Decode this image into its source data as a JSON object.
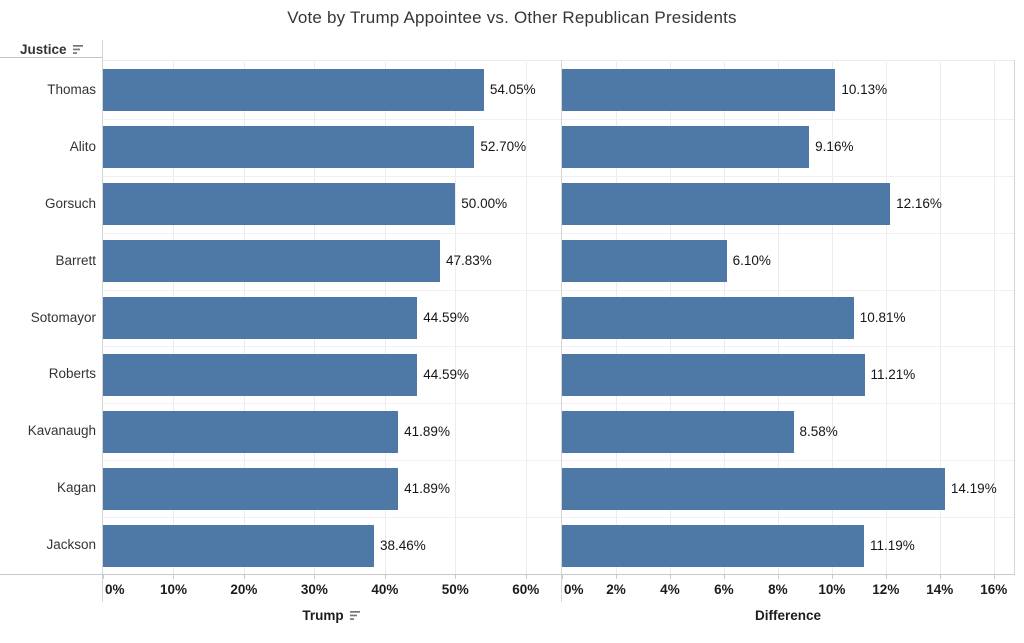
{
  "chart_data": {
    "type": "bar",
    "orientation": "horizontal",
    "title": "Vote by Trump Appointee vs. Other Republican Presidents",
    "row_header": {
      "label": "Justice",
      "sorted": true
    },
    "categories": [
      "Thomas",
      "Alito",
      "Gorsuch",
      "Barrett",
      "Sotomayor",
      "Roberts",
      "Kavanaugh",
      "Kagan",
      "Jackson"
    ],
    "series": [
      {
        "name": "Trump",
        "values": [
          54.05,
          52.7,
          50.0,
          47.83,
          44.59,
          44.59,
          41.89,
          41.89,
          38.46
        ],
        "value_labels": [
          "54.05%",
          "52.70%",
          "50.00%",
          "47.83%",
          "44.59%",
          "44.59%",
          "41.89%",
          "41.89%",
          "38.46%"
        ],
        "axis": {
          "title": "Trump",
          "sorted": true,
          "ticks": [
            "0%",
            "10%",
            "20%",
            "30%",
            "40%",
            "50%",
            "60%"
          ],
          "tick_values": [
            0,
            10,
            20,
            30,
            40,
            50,
            60
          ],
          "range": [
            0,
            65
          ]
        }
      },
      {
        "name": "Difference",
        "values": [
          10.13,
          9.16,
          12.16,
          6.1,
          10.81,
          11.21,
          8.58,
          14.19,
          11.19
        ],
        "value_labels": [
          "10.13%",
          "9.16%",
          "12.16%",
          "6.10%",
          "10.81%",
          "11.21%",
          "8.58%",
          "14.19%",
          "11.19%"
        ],
        "axis": {
          "title": "Difference",
          "sorted": false,
          "ticks": [
            "0%",
            "2%",
            "4%",
            "6%",
            "8%",
            "10%",
            "12%",
            "14%",
            "16%"
          ],
          "tick_values": [
            0,
            2,
            4,
            6,
            8,
            10,
            12,
            14,
            16
          ],
          "range": [
            0,
            16.75
          ]
        }
      }
    ],
    "grid": true,
    "legend_position": "none"
  },
  "colors": {
    "bar": "#4e79a7",
    "grid_line": "#ececec",
    "row_divider": "#f0f0f0",
    "panel_border": "#d4d4d4",
    "axis_line": "#c9c9c9",
    "title_text": "#363636",
    "label_text": "#333333",
    "tick_text": "#1c1c1c",
    "value_text": "#151515",
    "sort_icon": "#767676"
  }
}
